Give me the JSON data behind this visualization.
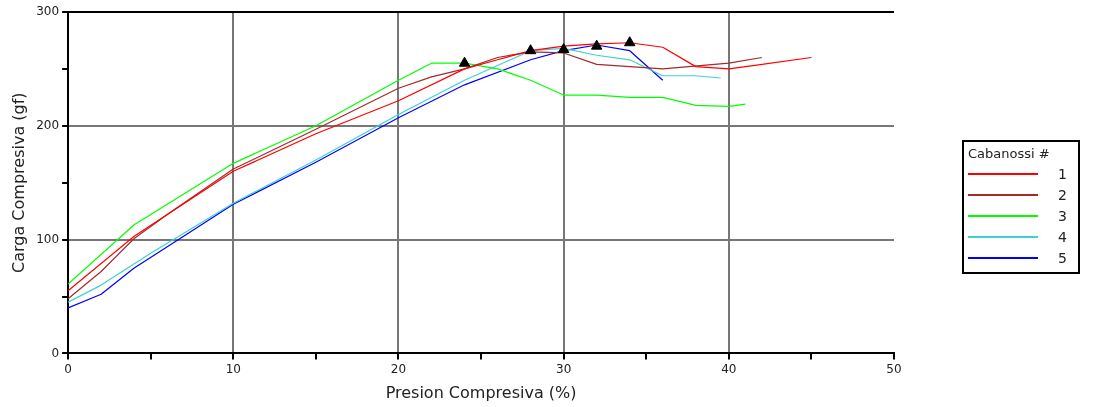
{
  "chart_data": {
    "type": "line",
    "xlabel": "Presion Compresiva (%)",
    "ylabel": "Carga Compresiva (gf)",
    "legend_title": "Cabanossi #",
    "legend": "right",
    "grid": true,
    "marker": "none",
    "line_style": "solid",
    "xlim": [
      0,
      50
    ],
    "xticks": [
      0,
      {
        "value": 5,
        "label": null
      },
      10,
      {
        "value": 15,
        "label": null
      },
      20,
      {
        "value": 25,
        "label": null
      },
      30,
      {
        "value": 35,
        "label": null
      },
      40,
      {
        "value": 45,
        "label": null
      },
      50
    ],
    "ylim": [
      0,
      300
    ],
    "yticks": [
      0,
      {
        "value": 50,
        "label": null
      },
      100,
      {
        "value": 150,
        "label": null
      },
      200,
      {
        "value": 250,
        "label": null
      },
      300
    ],
    "series": [
      {
        "name": "1",
        "color": "#ff0000",
        "x": [
          0,
          4,
          10,
          15,
          20,
          24,
          26,
          28,
          30,
          32,
          34,
          36,
          38,
          40,
          45
        ],
        "values": [
          55,
          103,
          160,
          193,
          222,
          250,
          258,
          266,
          270,
          272,
          273,
          269,
          252,
          250,
          260
        ]
      },
      {
        "name": "2",
        "color": "#a52a2a",
        "x": [
          0,
          2,
          4,
          6,
          10,
          15,
          20,
          22,
          24,
          26,
          28,
          30,
          32,
          34,
          36,
          40,
          42
        ],
        "values": [
          48,
          72,
          101,
          122,
          162,
          197,
          233,
          243,
          250,
          260,
          265,
          264,
          254,
          252,
          250,
          255,
          260
        ]
      },
      {
        "name": "3",
        "color": "#00ff00",
        "x": [
          0,
          4,
          10,
          15,
          20,
          22,
          24,
          26,
          28,
          30,
          32,
          34,
          36,
          38,
          40,
          41
        ],
        "values": [
          61,
          113,
          167,
          200,
          240,
          255,
          255,
          250,
          240,
          227,
          227,
          225,
          225,
          218,
          217,
          219
        ]
      },
      {
        "name": "4",
        "color": "#40d0d0",
        "x": [
          0,
          2,
          5,
          10,
          15,
          20,
          24,
          26,
          28,
          30,
          32,
          34,
          36,
          38,
          39.5
        ],
        "values": [
          45,
          60,
          88,
          132,
          170,
          210,
          240,
          253,
          266,
          268,
          262,
          258,
          244,
          244,
          242
        ]
      },
      {
        "name": "5",
        "color": "#0000ff",
        "x": [
          0,
          2,
          4,
          10,
          15,
          20,
          24,
          28,
          30,
          32,
          34,
          36
        ],
        "values": [
          40,
          52,
          75,
          131,
          168,
          207,
          236,
          258,
          266,
          271,
          266,
          240
        ]
      },
      {
        "type": "scatter",
        "marker": "triangle",
        "color": "#000000",
        "x": [
          24,
          28,
          30,
          32,
          34
        ],
        "values": [
          255,
          266,
          267,
          270,
          273
        ]
      }
    ]
  }
}
